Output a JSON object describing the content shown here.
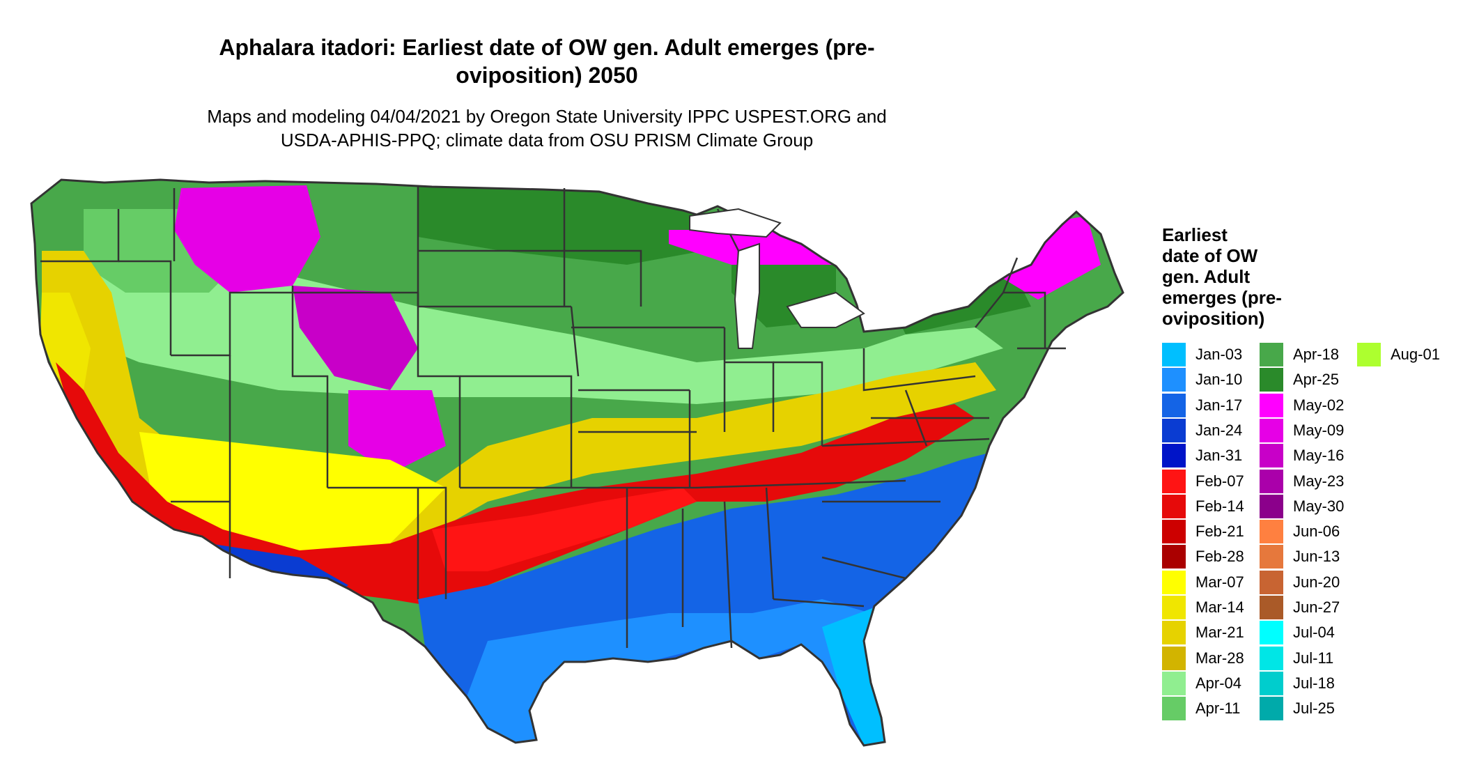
{
  "header": {
    "title_line1": "Aphalara itadori: Earliest date of OW gen. Adult emerges (pre-",
    "title_line2": "oviposition) 2050",
    "subtitle_line1": "Maps and modeling 04/04/2021 by Oregon State University IPPC USPEST.ORG and",
    "subtitle_line2": "USDA-APHIS-PPQ; climate data from OSU PRISM Climate Group"
  },
  "legend": {
    "title_lines": [
      "Earliest",
      "date of OW",
      "gen. Adult",
      "emerges (pre-",
      "oviposition)"
    ],
    "entries": [
      {
        "label": "Jan-03",
        "color": "#00bfff"
      },
      {
        "label": "Jan-10",
        "color": "#1e90ff"
      },
      {
        "label": "Jan-17",
        "color": "#1464e6"
      },
      {
        "label": "Jan-24",
        "color": "#0a3cd2"
      },
      {
        "label": "Jan-31",
        "color": "#0014c8"
      },
      {
        "label": "Feb-07",
        "color": "#ff1414"
      },
      {
        "label": "Feb-14",
        "color": "#e60a0a"
      },
      {
        "label": "Feb-21",
        "color": "#cd0000"
      },
      {
        "label": "Feb-28",
        "color": "#aa0000"
      },
      {
        "label": "Mar-07",
        "color": "#ffff00"
      },
      {
        "label": "Mar-14",
        "color": "#f0e600"
      },
      {
        "label": "Mar-21",
        "color": "#e6d200"
      },
      {
        "label": "Mar-28",
        "color": "#d2b400"
      },
      {
        "label": "Apr-04",
        "color": "#90ee90"
      },
      {
        "label": "Apr-11",
        "color": "#66cc66"
      },
      {
        "label": "Apr-18",
        "color": "#48a84a"
      },
      {
        "label": "Apr-25",
        "color": "#2a8a2a"
      },
      {
        "label": "May-02",
        "color": "#ff00ff"
      },
      {
        "label": "May-09",
        "color": "#e600e6"
      },
      {
        "label": "May-16",
        "color": "#c800c8"
      },
      {
        "label": "May-23",
        "color": "#aa00aa"
      },
      {
        "label": "May-30",
        "color": "#8b008b"
      },
      {
        "label": "Jun-06",
        "color": "#ff8040"
      },
      {
        "label": "Jun-13",
        "color": "#e6783c"
      },
      {
        "label": "Jun-20",
        "color": "#c86432"
      },
      {
        "label": "Jun-27",
        "color": "#aa5a28"
      },
      {
        "label": "Jul-04",
        "color": "#00ffff"
      },
      {
        "label": "Jul-11",
        "color": "#00e6e6"
      },
      {
        "label": "Jul-18",
        "color": "#00cdcd"
      },
      {
        "label": "Jul-25",
        "color": "#00aaaa"
      },
      {
        "label": "Aug-01",
        "color": "#adff2f"
      }
    ]
  },
  "map": {
    "background_color": "#ffffff",
    "state_border_color": "#333333"
  }
}
